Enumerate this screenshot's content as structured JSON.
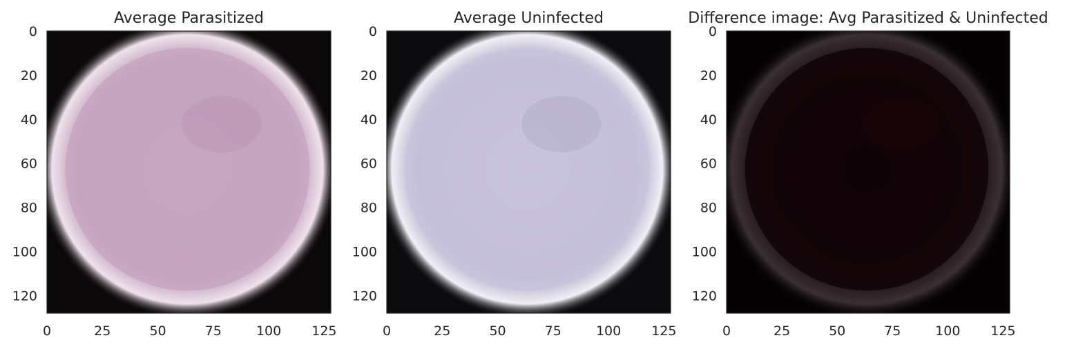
{
  "chart_data": [
    {
      "type": "heatmap",
      "title": "Average Parasitized",
      "xticks": [
        0,
        25,
        50,
        75,
        100,
        125
      ],
      "yticks": [
        0,
        20,
        40,
        60,
        80,
        100,
        120
      ],
      "xlim": [
        0,
        128
      ],
      "ylim": [
        128,
        0
      ],
      "grid": false,
      "image": {
        "background": "#0b0809",
        "fill": "#c7a6c1",
        "edge": "#efe2ec",
        "shade": "#b592b0"
      }
    },
    {
      "type": "heatmap",
      "title": "Average Uninfected",
      "xticks": [
        0,
        25,
        50,
        75,
        100,
        125
      ],
      "yticks": [
        0,
        20,
        40,
        60,
        80,
        100,
        120
      ],
      "xlim": [
        0,
        128
      ],
      "ylim": [
        128,
        0
      ],
      "grid": false,
      "image": {
        "background": "#0b0a0c",
        "fill": "#c9c4dc",
        "edge": "#f1eef6",
        "shade": "#a9a3c0"
      }
    },
    {
      "type": "heatmap",
      "title": "Difference image: Avg Parasitized & Uninfected",
      "xticks": [
        0,
        25,
        50,
        75,
        100,
        125
      ],
      "yticks": [
        0,
        20,
        40,
        60,
        80,
        100,
        120
      ],
      "xlim": [
        0,
        128
      ],
      "ylim": [
        128,
        0
      ],
      "grid": false,
      "image": {
        "background": "#050203",
        "fill": "#110407",
        "edge": "#3a3034",
        "shade": "#1c070b"
      }
    }
  ]
}
